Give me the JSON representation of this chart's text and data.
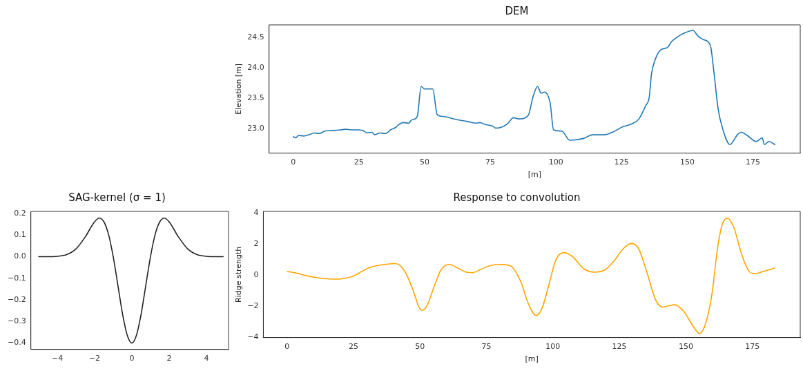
{
  "chart_data": [
    {
      "type": "line",
      "title": "DEM",
      "xlabel": "[m]",
      "ylabel": "Elevation [m]",
      "xlim": [
        -9.2,
        193
      ],
      "xticks": [
        0,
        25,
        50,
        75,
        100,
        125,
        150,
        175
      ],
      "ylim": [
        22.6,
        24.7
      ],
      "yticks": [
        {
          "value": 23,
          "label": "23.0"
        },
        23.5,
        {
          "value": 24,
          "label": "24.0"
        },
        24.5
      ],
      "grid": false,
      "legend": false,
      "marker": "none",
      "line_style": "solid",
      "series": [
        {
          "color": "#1f77b4",
          "x": [
            0,
            1,
            2,
            4,
            6,
            8,
            10,
            12,
            15,
            18,
            20,
            22,
            25,
            27,
            28,
            30,
            31,
            33,
            35,
            36,
            37,
            39,
            40,
            42,
            44,
            45,
            47,
            47.4,
            48.7,
            50,
            53.1,
            54.8,
            57,
            62,
            66,
            70,
            71,
            73,
            76,
            77,
            79,
            81.6,
            83.8,
            86,
            89.5,
            91.2,
            93,
            94.4,
            95.6,
            97.8,
            99.1,
            102.2,
            105.3,
            110.5,
            113.9,
            118.4,
            121.9,
            125.4,
            128.9,
            131.6,
            134.2,
            135.5,
            136.4,
            137.7,
            139.9,
            142.5,
            143.9,
            146.5,
            149.1,
            152.2,
            154,
            156.1,
            158.8,
            160.1,
            161.8,
            163.6,
            166.2,
            169.3,
            170.6,
            172.8,
            176.3,
            178.5,
            179.4,
            181.1,
            183.3
          ],
          "values": [
            22.87,
            22.85,
            22.89,
            22.88,
            22.9,
            22.93,
            22.92,
            22.96,
            22.97,
            22.98,
            22.99,
            22.98,
            22.98,
            22.96,
            22.93,
            22.94,
            22.9,
            22.93,
            22.92,
            22.94,
            22.98,
            23.02,
            23.06,
            23.1,
            23.09,
            23.14,
            23.18,
            23.24,
            23.69,
            23.65,
            23.65,
            23.23,
            23.2,
            23.15,
            23.12,
            23.09,
            23.1,
            23.07,
            23.04,
            23.01,
            23.02,
            23.08,
            23.18,
            23.16,
            23.22,
            23.51,
            23.69,
            23.58,
            23.6,
            23.42,
            22.98,
            22.96,
            22.81,
            22.84,
            22.9,
            22.9,
            22.95,
            23.03,
            23.08,
            23.16,
            23.38,
            23.51,
            23.9,
            24.12,
            24.29,
            24.33,
            24.42,
            24.51,
            24.57,
            24.61,
            24.52,
            24.46,
            24.36,
            23.94,
            23.31,
            22.98,
            22.74,
            22.91,
            22.94,
            22.89,
            22.79,
            22.85,
            22.74,
            22.79,
            22.74
          ]
        }
      ]
    },
    {
      "type": "line",
      "title": "SAG-kernel (σ = 1)",
      "xlim": [
        -5.42,
        5.19
      ],
      "xticks": [
        {
          "value": -4,
          "label": "−4"
        },
        {
          "value": -2,
          "label": "−2"
        },
        0,
        2,
        4
      ],
      "ylim": [
        -0.43,
        0.21
      ],
      "yticks": [
        {
          "value": -0.4,
          "label": "−0.4"
        },
        {
          "value": -0.3,
          "label": "−0.3"
        },
        {
          "value": -0.2,
          "label": "−0.2"
        },
        {
          "value": -0.1,
          "label": "−0.1"
        },
        {
          "value": 0,
          "label": "0.0"
        },
        0.1,
        0.2
      ],
      "grid": false,
      "legend": false,
      "marker": "none",
      "line_style": "solid",
      "series": [
        {
          "color": "#222222",
          "x": [
            -5,
            -4.5,
            -4,
            -3.5,
            -3,
            -2.5,
            -2,
            -1.75,
            -1.5,
            -1.25,
            -1,
            -0.75,
            -0.5,
            -0.25,
            0,
            0.25,
            0.5,
            0.75,
            1,
            1.25,
            1.5,
            1.75,
            2,
            2.5,
            3,
            3.5,
            4,
            4.5,
            4.9
          ],
          "values": [
            0,
            0,
            0.002,
            0.01,
            0.036,
            0.092,
            0.162,
            0.179,
            0.162,
            0.103,
            0,
            -0.132,
            -0.265,
            -0.363,
            -0.4,
            -0.363,
            -0.265,
            -0.132,
            0,
            0.103,
            0.162,
            0.179,
            0.162,
            0.092,
            0.036,
            0.01,
            0.002,
            0,
            0
          ]
        }
      ]
    },
    {
      "type": "line",
      "title": "Response to convolution",
      "xlabel": "[m]",
      "ylabel": "Ridge strength",
      "xlim": [
        -8.9,
        193
      ],
      "xticks": [
        0,
        25,
        50,
        75,
        100,
        125,
        150,
        175
      ],
      "ylim": [
        -4.02,
        4.1
      ],
      "yticks": [
        {
          "value": -4,
          "label": "−4"
        },
        {
          "value": -2,
          "label": "−2"
        },
        0,
        2,
        4
      ],
      "grid": false,
      "legend": false,
      "marker": "none",
      "line_style": "solid",
      "series": [
        {
          "color": "#ffa500",
          "x": [
            0,
            2.6,
            7,
            11.4,
            15.8,
            19.3,
            21.9,
            25,
            28.1,
            31.6,
            36,
            40.4,
            42.1,
            44.7,
            47.4,
            49.6,
            50.9,
            52.6,
            55.3,
            57.9,
            61,
            64,
            67.5,
            69.7,
            72.8,
            76.3,
            79.8,
            81.9,
            84.5,
            88,
            90.6,
            93.7,
            95.9,
            98.5,
            101.1,
            104.2,
            107.3,
            111.6,
            115.6,
            119.5,
            123,
            126.5,
            129.5,
            132.2,
            135.2,
            138.7,
            141.3,
            145.7,
            149.2,
            152.7,
            155.2,
            157.5,
            159.7,
            161.9,
            163.6,
            165.6,
            168,
            171.1,
            173.7,
            175.9,
            179,
            183.3
          ],
          "values": [
            0.23,
            0.16,
            -0.03,
            -0.17,
            -0.25,
            -0.26,
            -0.2,
            -0.06,
            0.23,
            0.52,
            0.67,
            0.74,
            0.67,
            0.12,
            -0.97,
            -2.05,
            -2.27,
            -1.98,
            -0.75,
            0.33,
            0.69,
            0.48,
            0.19,
            0.16,
            0.36,
            0.61,
            0.69,
            0.67,
            0.55,
            -0.46,
            -1.77,
            -2.6,
            -2.13,
            -0.61,
            0.98,
            1.45,
            1.2,
            0.41,
            0.19,
            0.33,
            0.91,
            1.71,
            2.04,
            1.71,
            0.26,
            -1.62,
            -2.06,
            -1.91,
            -2.34,
            -3.28,
            -3.76,
            -3.07,
            -1.33,
            1.71,
            3.23,
            3.66,
            3.08,
            1.27,
            0.26,
            0.09,
            0.23,
            0.45
          ]
        }
      ]
    }
  ]
}
